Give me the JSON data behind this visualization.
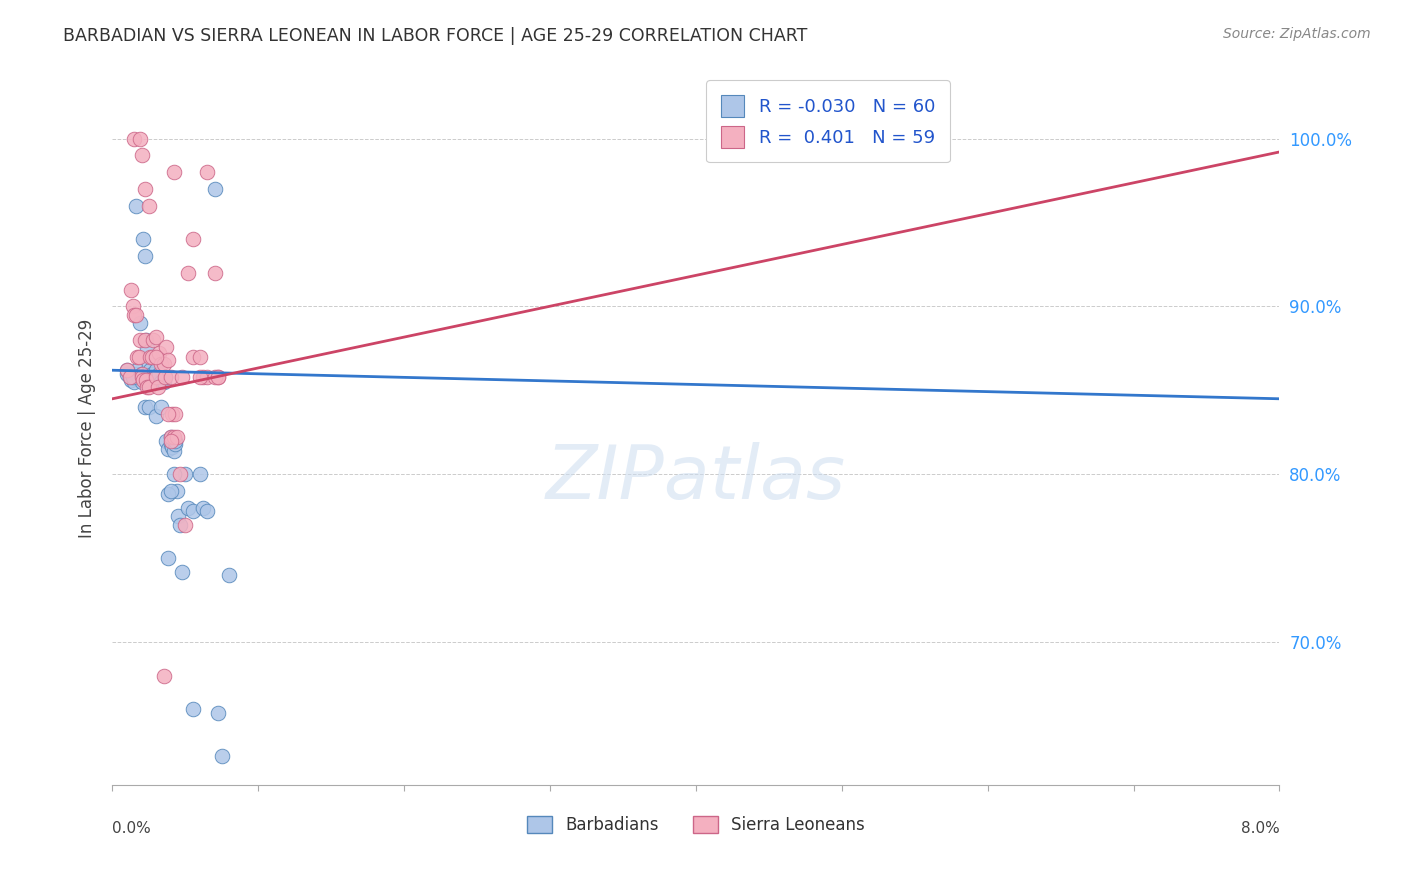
{
  "title": "BARBADIAN VS SIERRA LEONEAN IN LABOR FORCE | AGE 25-29 CORRELATION CHART",
  "source": "Source: ZipAtlas.com",
  "ylabel": "In Labor Force | Age 25-29",
  "watermark": "ZIPatlas",
  "legend_r1": "R = -0.030",
  "legend_n1": "N = 60",
  "legend_r2": "R =  0.401",
  "legend_n2": "N = 59",
  "barbadian_color": "#aec6e8",
  "sierraleone_color": "#f4b0c0",
  "barbadian_edge": "#5588bb",
  "sierraleone_edge": "#cc6688",
  "trendline_blue": "#3377cc",
  "trendline_pink": "#cc4466",
  "background": "#ffffff",
  "grid_color": "#cccccc",
  "xlim": [
    0.0,
    0.08
  ],
  "ylim": [
    0.615,
    1.04
  ],
  "yticks": [
    0.7,
    0.8,
    0.9,
    1.0
  ],
  "ytick_labels": [
    "70.0%",
    "80.0%",
    "90.0%",
    "100.0%"
  ],
  "trendline_blue_x0": 0.0,
  "trendline_blue_y0": 0.862,
  "trendline_blue_x1": 0.08,
  "trendline_blue_y1": 0.845,
  "trendline_pink_x0": 0.0,
  "trendline_pink_y0": 0.845,
  "trendline_pink_x1": 0.08,
  "trendline_pink_y1": 0.992,
  "blue_x": [
    0.001,
    0.0012,
    0.0013,
    0.0015,
    0.0016,
    0.0017,
    0.0018,
    0.002,
    0.002,
    0.002,
    0.0021,
    0.0022,
    0.0023,
    0.0024,
    0.0025,
    0.0026,
    0.0027,
    0.0028,
    0.003,
    0.003,
    0.0031,
    0.0032,
    0.0033,
    0.0035,
    0.0036,
    0.0037,
    0.0038,
    0.004,
    0.004,
    0.0041,
    0.0042,
    0.0043,
    0.0044,
    0.0045,
    0.0046,
    0.005,
    0.0052,
    0.0055,
    0.006,
    0.0062,
    0.0065,
    0.007,
    0.0072,
    0.0075,
    0.008,
    0.001,
    0.0014,
    0.0016,
    0.0019,
    0.0022,
    0.0025,
    0.003,
    0.0033,
    0.0038,
    0.0042,
    0.0048,
    0.0055,
    0.0038,
    0.004,
    0.0043
  ],
  "blue_y": [
    0.86,
    0.858,
    0.856,
    0.855,
    0.86,
    0.862,
    0.858,
    0.858,
    0.855,
    0.86,
    0.94,
    0.93,
    0.88,
    0.875,
    0.865,
    0.862,
    0.86,
    0.858,
    0.862,
    0.858,
    0.855,
    0.86,
    0.855,
    0.855,
    0.858,
    0.82,
    0.815,
    0.822,
    0.818,
    0.816,
    0.814,
    0.818,
    0.79,
    0.775,
    0.77,
    0.8,
    0.78,
    0.778,
    0.8,
    0.78,
    0.778,
    0.97,
    0.658,
    0.632,
    0.74,
    0.862,
    0.858,
    0.96,
    0.89,
    0.84,
    0.84,
    0.835,
    0.84,
    0.788,
    0.8,
    0.742,
    0.66,
    0.75,
    0.79,
    0.82
  ],
  "pink_x": [
    0.001,
    0.0012,
    0.0013,
    0.0014,
    0.0015,
    0.0016,
    0.0017,
    0.0018,
    0.0019,
    0.002,
    0.002,
    0.0021,
    0.0022,
    0.0023,
    0.0024,
    0.0025,
    0.0026,
    0.0027,
    0.0028,
    0.003,
    0.003,
    0.0031,
    0.0032,
    0.0033,
    0.0035,
    0.0036,
    0.0037,
    0.0038,
    0.004,
    0.004,
    0.0041,
    0.0042,
    0.0043,
    0.0044,
    0.0046,
    0.005,
    0.0052,
    0.0055,
    0.006,
    0.0062,
    0.0065,
    0.007,
    0.0072,
    0.0015,
    0.0019,
    0.002,
    0.0022,
    0.0025,
    0.003,
    0.0035,
    0.0038,
    0.0042,
    0.0048,
    0.0055,
    0.006,
    0.0065,
    0.007,
    0.0072,
    0.004
  ],
  "pink_y": [
    0.862,
    0.858,
    0.91,
    0.9,
    0.895,
    0.895,
    0.87,
    0.87,
    0.88,
    0.86,
    0.858,
    0.856,
    0.88,
    0.856,
    0.852,
    0.852,
    0.87,
    0.87,
    0.88,
    0.882,
    0.858,
    0.852,
    0.872,
    0.866,
    0.866,
    0.858,
    0.876,
    0.868,
    0.858,
    0.822,
    0.836,
    0.822,
    0.836,
    0.822,
    0.8,
    0.77,
    0.92,
    0.87,
    0.87,
    0.858,
    0.858,
    0.92,
    0.858,
    1.0,
    1.0,
    0.99,
    0.97,
    0.96,
    0.87,
    0.68,
    0.836,
    0.98,
    0.858,
    0.94,
    0.858,
    0.98,
    0.858,
    0.858,
    0.82
  ]
}
